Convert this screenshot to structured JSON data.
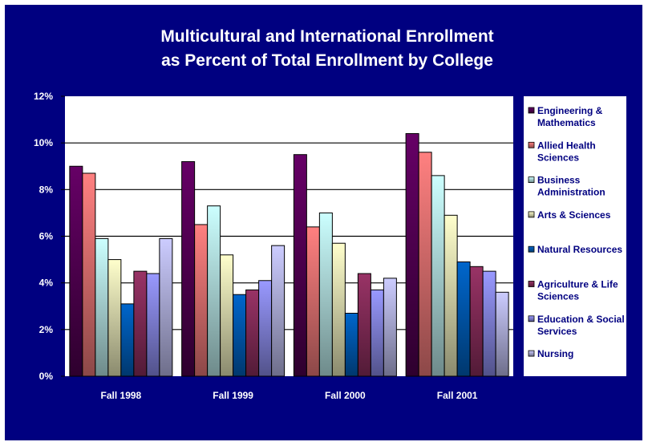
{
  "chart_data": {
    "type": "bar",
    "title": [
      "Multicultural and International Enrollment",
      "as Percent of Total Enrollment by College"
    ],
    "xlabel": "",
    "ylabel": "",
    "ylim": [
      0,
      12
    ],
    "yticks": [
      0,
      2,
      4,
      6,
      8,
      10,
      12
    ],
    "ytick_labels": [
      "0%",
      "2%",
      "4%",
      "6%",
      "8%",
      "10%",
      "12%"
    ],
    "grid": true,
    "legend_position": "right",
    "categories": [
      "Fall 1998",
      "Fall 1999",
      "Fall 2000",
      "Fall 2001"
    ],
    "series": [
      {
        "name": "Engineering & Mathematics",
        "legend_lines": [
          "Engineering &",
          "Mathematics"
        ],
        "color_top": "#660066",
        "color_bottom": "#2e002e",
        "values": [
          9.0,
          9.2,
          9.5,
          10.4
        ]
      },
      {
        "name": "Allied Health Sciences",
        "legend_lines": [
          "Allied Health",
          "Sciences"
        ],
        "color_top": "#ff8080",
        "color_bottom": "#8c4848",
        "values": [
          8.7,
          6.5,
          6.4,
          9.6
        ]
      },
      {
        "name": "Business Administration",
        "legend_lines": [
          "Business",
          "Administration"
        ],
        "color_top": "#ccffff",
        "color_bottom": "#6e8a8a",
        "values": [
          5.9,
          7.3,
          7.0,
          8.6
        ]
      },
      {
        "name": "Arts & Sciences",
        "legend_lines": [
          "Arts & Sciences"
        ],
        "color_top": "#ffffcc",
        "color_bottom": "#8a8a6e",
        "values": [
          5.0,
          5.2,
          5.7,
          6.9
        ]
      },
      {
        "name": "Natural Resources",
        "legend_lines": [
          "Natural Resources"
        ],
        "color_top": "#0066cc",
        "color_bottom": "#00386e",
        "values": [
          3.1,
          3.5,
          2.7,
          4.9
        ]
      },
      {
        "name": "Agriculture & Life Sciences",
        "legend_lines": [
          "Agriculture & Life",
          "Sciences"
        ],
        "color_top": "#993366",
        "color_bottom": "#521b37",
        "values": [
          4.5,
          3.7,
          4.4,
          4.7
        ]
      },
      {
        "name": "Education & Social Services",
        "legend_lines": [
          "Education & Social",
          "Services"
        ],
        "color_top": "#9999ff",
        "color_bottom": "#52528a",
        "values": [
          4.4,
          4.1,
          3.7,
          4.5
        ]
      },
      {
        "name": "Nursing",
        "legend_lines": [
          "Nursing"
        ],
        "color_top": "#ccccff",
        "color_bottom": "#6e6e8a",
        "values": [
          5.9,
          5.6,
          4.2,
          3.6
        ]
      }
    ]
  }
}
